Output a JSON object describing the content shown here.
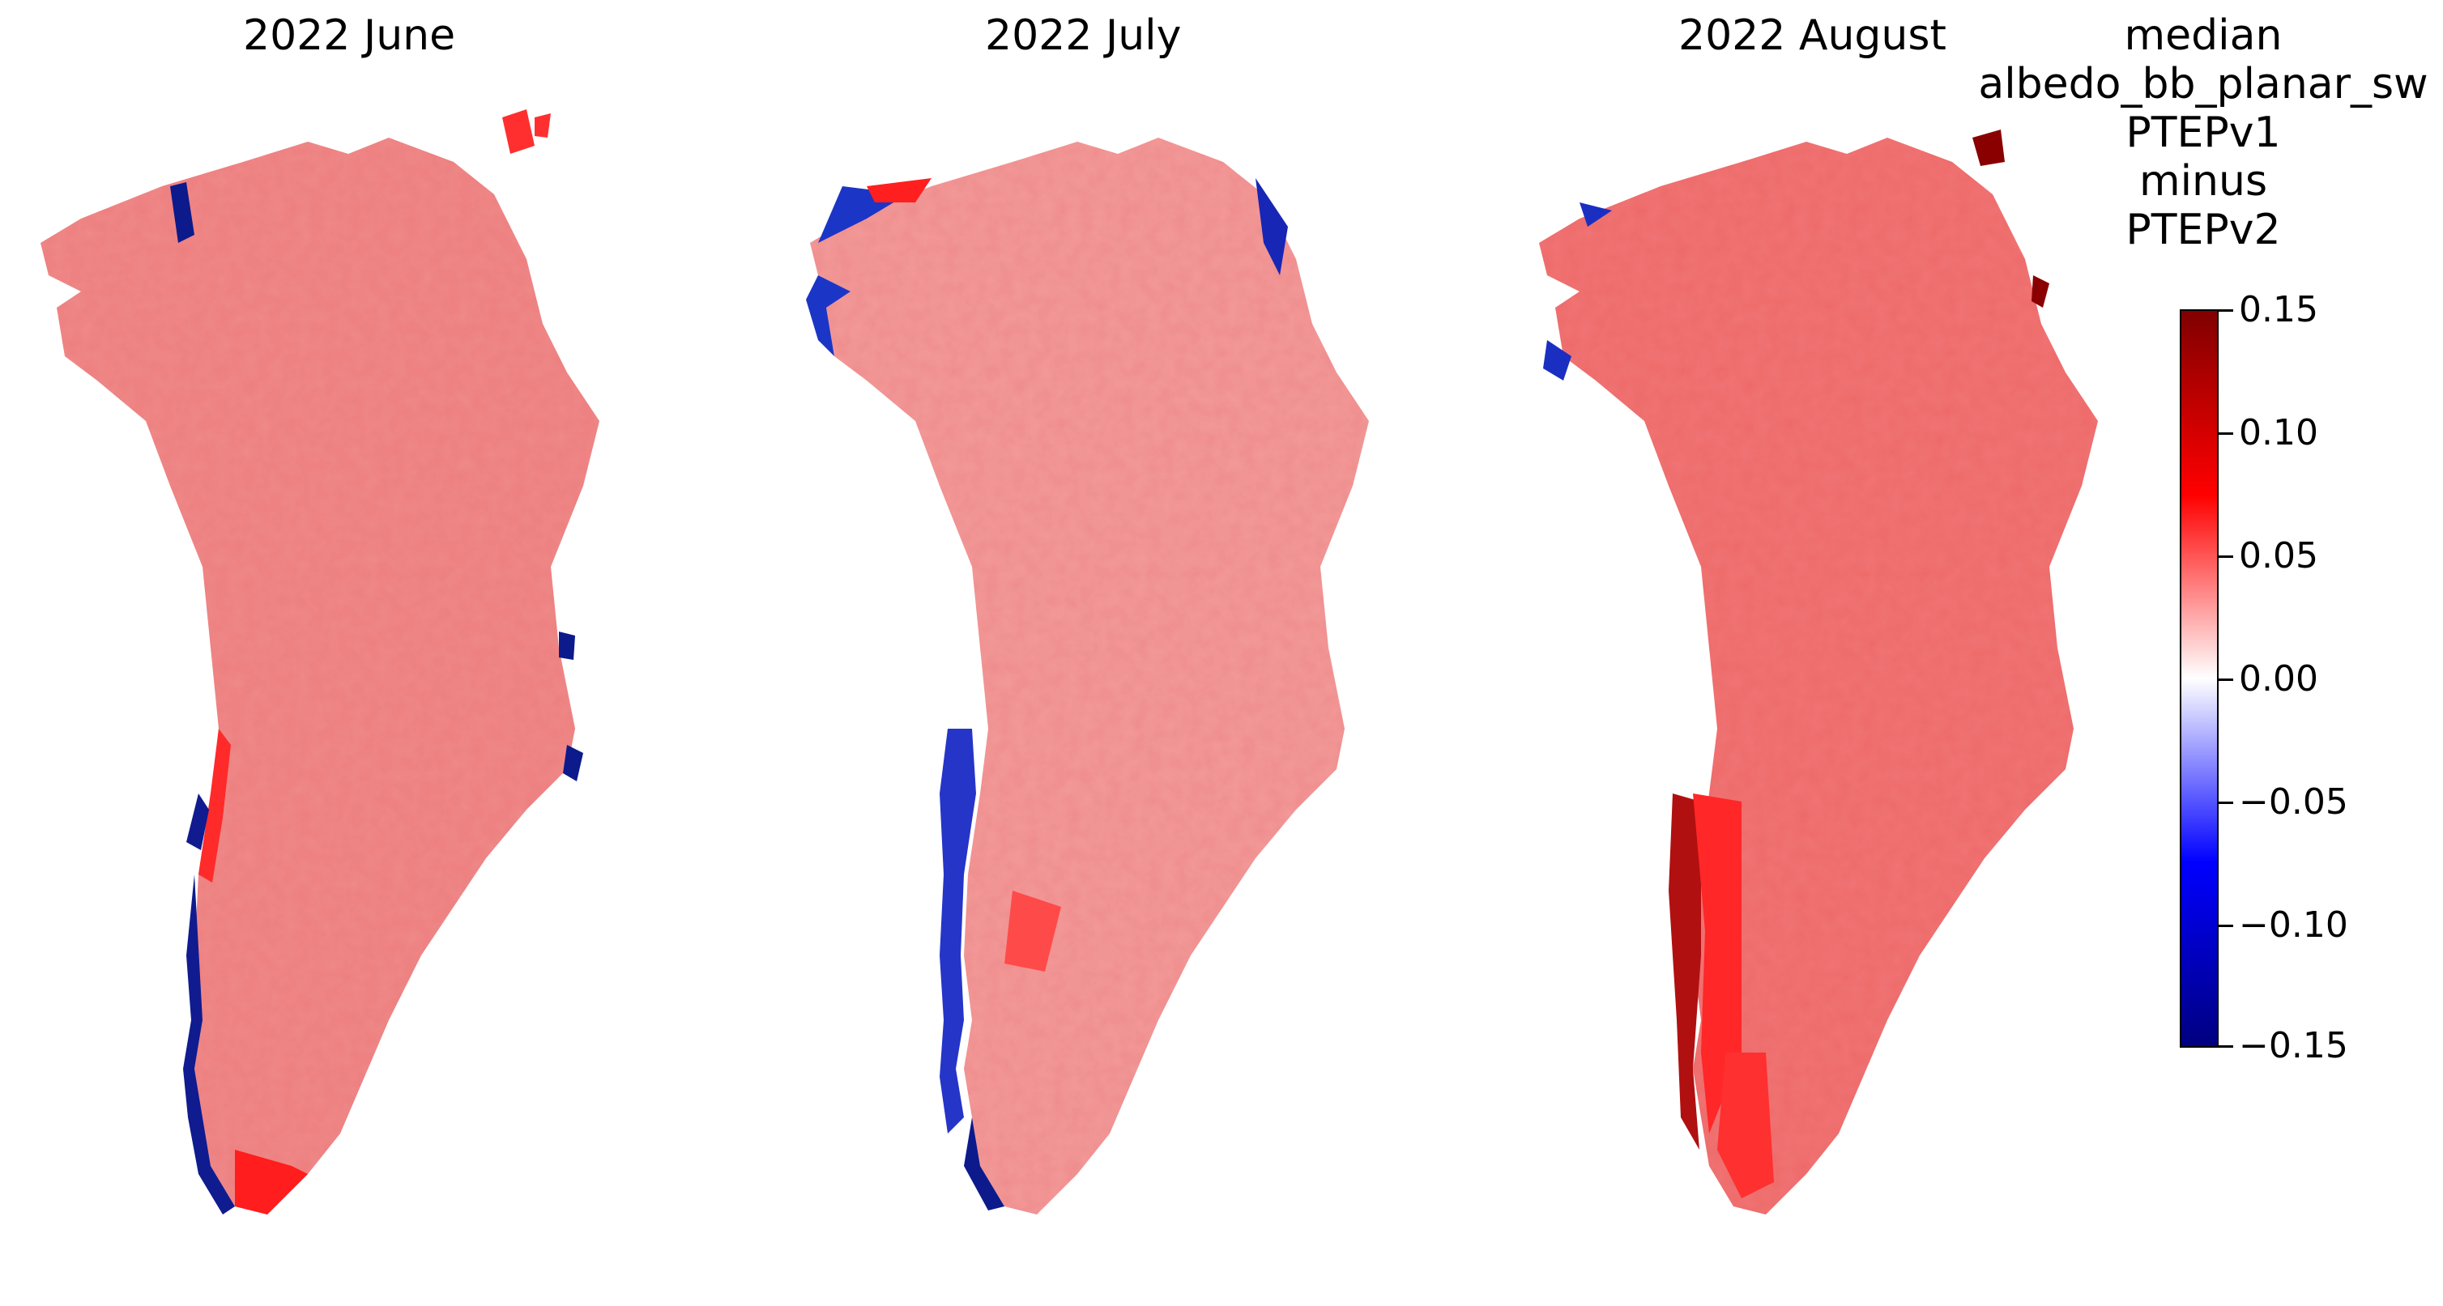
{
  "panels": [
    {
      "title": "2022 June"
    },
    {
      "title": "2022 July"
    },
    {
      "title": "2022 August"
    }
  ],
  "colorbar": {
    "title_lines": [
      "median",
      "albedo_bb_planar_sw",
      "PTEPv1",
      "minus",
      "PTEPv2"
    ],
    "ticks": [
      "0.15",
      "0.10",
      "0.05",
      "0.00",
      "−0.05",
      "−0.10",
      "−0.15"
    ],
    "range": [
      -0.15,
      0.15
    ],
    "colormap": "seismic",
    "colors": {
      "max": "#800000",
      "high": "#ff0000",
      "zero": "#ffffff",
      "low": "#0000ff",
      "min": "#000080"
    }
  }
}
